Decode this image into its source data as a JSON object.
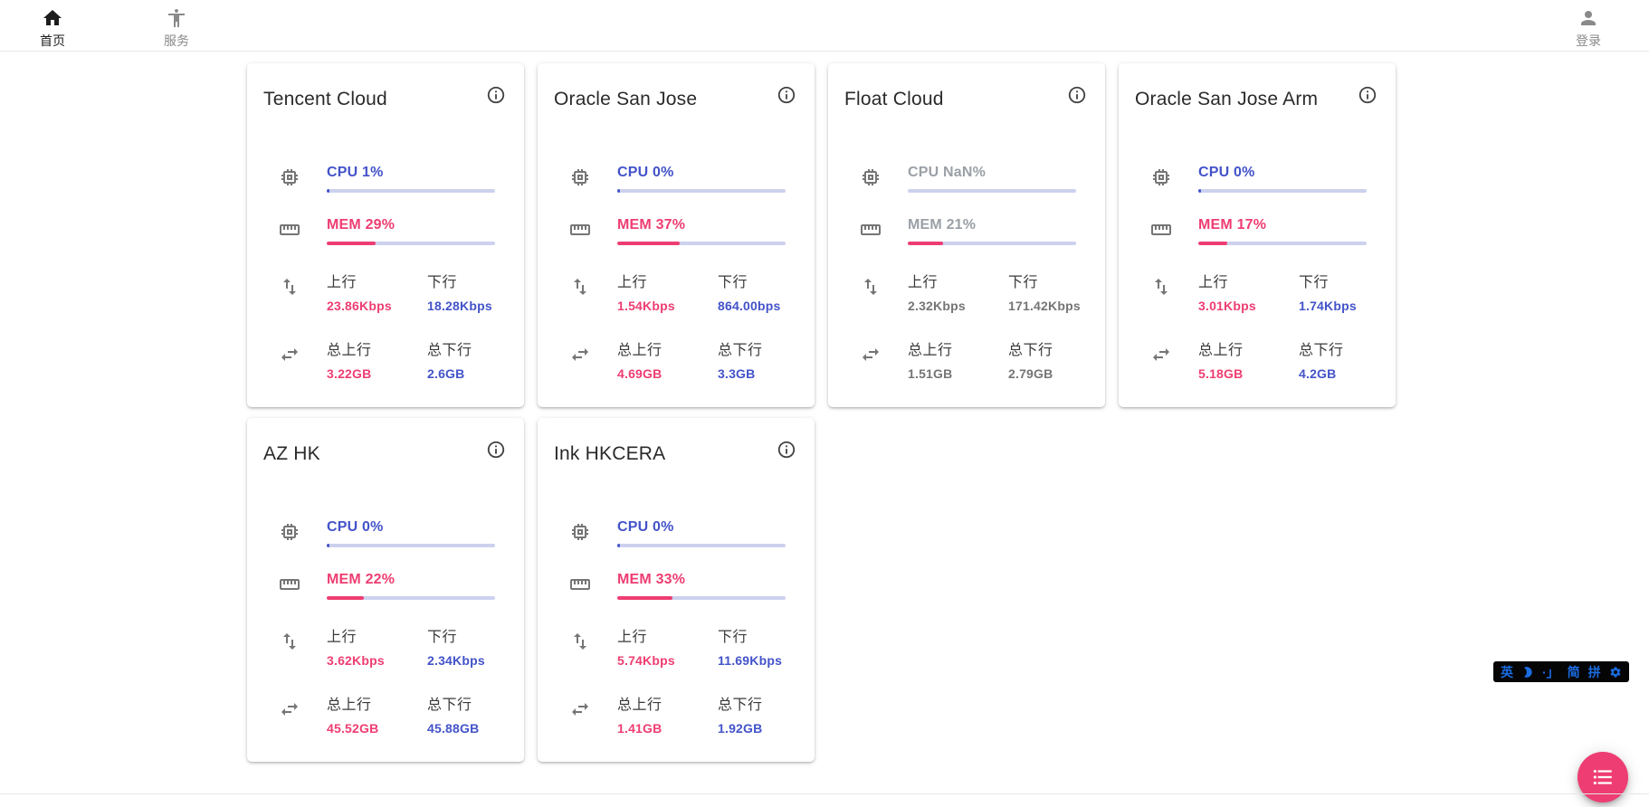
{
  "nav": {
    "home": {
      "label": "首页"
    },
    "services": {
      "label": "服务"
    },
    "login": {
      "label": "登录"
    }
  },
  "labels": {
    "up": "上行",
    "down": "下行",
    "total_up": "总上行",
    "total_down": "总下行"
  },
  "servers": [
    {
      "name": "Tencent Cloud",
      "cpu": {
        "text": "CPU 1%",
        "pct": 1
      },
      "mem": {
        "text": "MEM 29%",
        "pct": 29
      },
      "net": {
        "up": "23.86Kbps",
        "down": "18.28Kbps"
      },
      "total": {
        "up": "3.22GB",
        "down": "2.6GB"
      }
    },
    {
      "name": "Oracle San Jose",
      "cpu": {
        "text": "CPU 0%",
        "pct": 0
      },
      "mem": {
        "text": "MEM 37%",
        "pct": 37
      },
      "net": {
        "up": "1.54Kbps",
        "down": "864.00bps"
      },
      "total": {
        "up": "4.69GB",
        "down": "3.3GB"
      }
    },
    {
      "name": "Float Cloud",
      "cpu": {
        "text": "CPU NaN%",
        "pct": 0
      },
      "mem": {
        "text": "MEM 21%",
        "pct": 21
      },
      "net": {
        "up": "2.32Kbps",
        "down": "171.42Kbps"
      },
      "total": {
        "up": "1.51GB",
        "down": "2.79GB"
      }
    },
    {
      "name": "Oracle San Jose Arm",
      "cpu": {
        "text": "CPU 0%",
        "pct": 0
      },
      "mem": {
        "text": "MEM 17%",
        "pct": 17
      },
      "net": {
        "up": "3.01Kbps",
        "down": "1.74Kbps"
      },
      "total": {
        "up": "5.18GB",
        "down": "4.2GB"
      }
    },
    {
      "name": "AZ HK",
      "cpu": {
        "text": "CPU 0%",
        "pct": 0
      },
      "mem": {
        "text": "MEM 22%",
        "pct": 22
      },
      "net": {
        "up": "3.62Kbps",
        "down": "2.34Kbps"
      },
      "total": {
        "up": "45.52GB",
        "down": "45.88GB"
      }
    },
    {
      "name": "Ink HKCERA",
      "cpu": {
        "text": "CPU 0%",
        "pct": 0
      },
      "mem": {
        "text": "MEM 33%",
        "pct": 33
      },
      "net": {
        "up": "5.74Kbps",
        "down": "11.69Kbps"
      },
      "total": {
        "up": "1.41GB",
        "down": "1.92GB"
      }
    }
  ],
  "ime": {
    "lang": "英",
    "punct": "·」",
    "simplified": "简",
    "pinyin": "拼"
  },
  "colors": {
    "accent_blue": "#4353c9",
    "accent_pink": "#ee3d72",
    "bar_track": "#ccd1ee",
    "muted_text": "#9aa0a6"
  }
}
